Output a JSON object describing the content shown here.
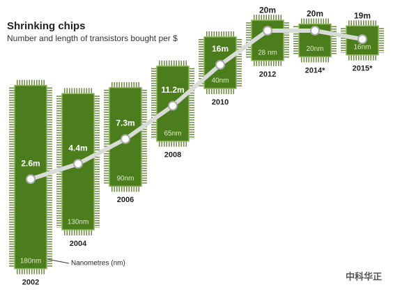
{
  "chart_data": {
    "type": "line",
    "title": "Shrinking chips",
    "subtitle": "Number and length of transistors bought per $",
    "categories": [
      "2002",
      "2004",
      "2006",
      "2008",
      "2010",
      "2012",
      "2014*",
      "2015*"
    ],
    "values": [
      2.6,
      4.4,
      7.3,
      11.2,
      16,
      20,
      20,
      19
    ],
    "value_labels": [
      "2.6m",
      "4.4m",
      "7.3m",
      "11.2m",
      "16m",
      "20m",
      "20m",
      "19m"
    ],
    "node_sizes": [
      180,
      130,
      90,
      65,
      40,
      28,
      20,
      16
    ],
    "node_labels": [
      "180nm",
      "130nm",
      "90nm",
      "65nm",
      "40nm",
      "28 nm",
      "20nm",
      "16nm"
    ],
    "annotation": "Nanometres (nm)",
    "watermark": "中科华正",
    "color": "#4b7d1c",
    "line_color": "#d9dcd6"
  }
}
